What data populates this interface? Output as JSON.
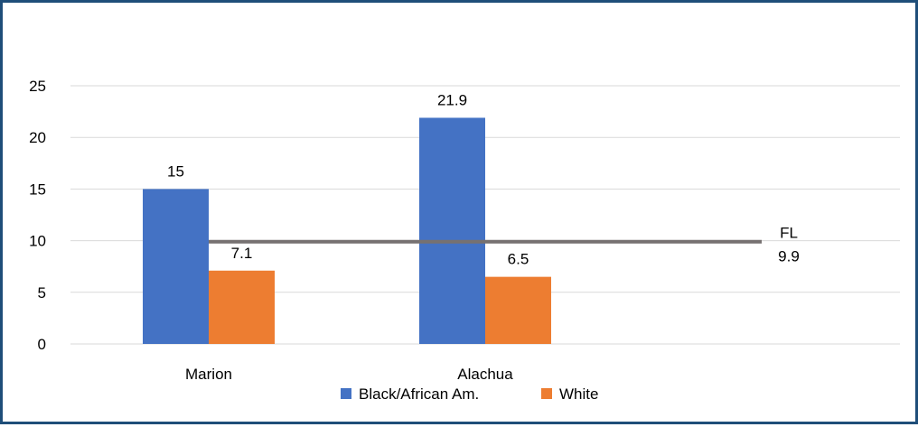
{
  "chart_data": {
    "type": "bar",
    "categories": [
      "Marion",
      "Alachua",
      ""
    ],
    "series": [
      {
        "name": "Black/African Am.",
        "color": "#4472c4",
        "values": [
          15,
          21.9,
          null
        ]
      },
      {
        "name": "White",
        "color": "#ed7d31",
        "values": [
          7.1,
          6.5,
          null
        ]
      }
    ],
    "data_labels": [
      [
        "15",
        "21.9",
        ""
      ],
      [
        "7.1",
        "6.5",
        ""
      ]
    ],
    "reference_line": {
      "value": 9.9,
      "name": "FL",
      "label": "9.9",
      "color": "#767171"
    },
    "yticks": [
      0,
      5,
      10,
      15,
      20,
      25
    ],
    "ylim": [
      0,
      25
    ],
    "grid": true,
    "legend_position": "bottom",
    "title": "",
    "xlabel": "",
    "ylabel": ""
  }
}
